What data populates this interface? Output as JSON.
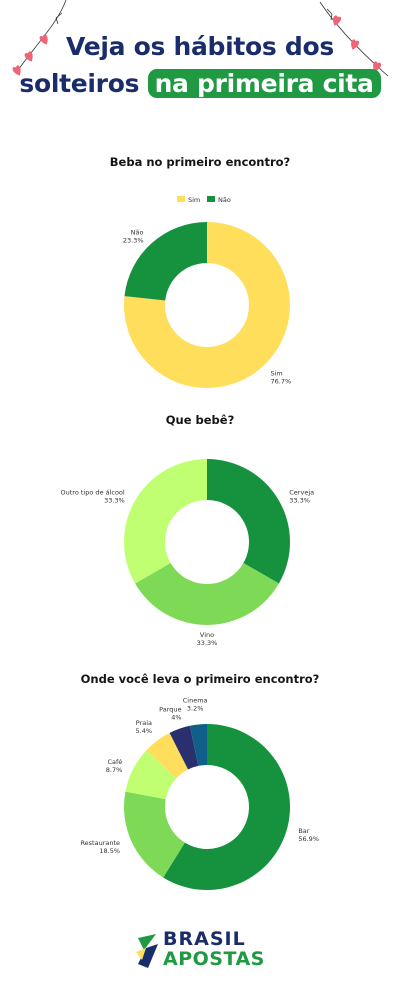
{
  "header": {
    "line1": "Veja os hábitos dos",
    "line2_plain": "solteiros",
    "line2_highlight": "na primeira cita"
  },
  "colors": {
    "title_navy": "#1a2d6b",
    "highlight_green": "#1f9a42",
    "heart_pink": "#f06477"
  },
  "chart_data": [
    {
      "type": "pie",
      "donut": true,
      "title": "Beba no primeiro encontro?",
      "legend_position": "top",
      "labels": [
        "Sim",
        "Não"
      ],
      "values": [
        76.7,
        23.3
      ],
      "value_labels": [
        "76.7%",
        "23.3%"
      ],
      "colors": [
        "#ffde5c",
        "#16923f"
      ]
    },
    {
      "type": "pie",
      "donut": true,
      "title": "Que bebê?",
      "labels": [
        "Cerveja",
        "Vino",
        "Outro tipo de álcool"
      ],
      "values": [
        33.3,
        33.3,
        33.3
      ],
      "value_labels": [
        "33.3%",
        "33.3%",
        "33.3%"
      ],
      "colors": [
        "#16923f",
        "#7ed957",
        "#c1ff72"
      ]
    },
    {
      "type": "pie",
      "donut": true,
      "title": "Onde você leva o primeiro encontro?",
      "labels": [
        "Bar",
        "Restaurante",
        "Café",
        "Praia",
        "Parque",
        "Cinema"
      ],
      "values": [
        56.9,
        18.5,
        8.7,
        5.4,
        4,
        3.2
      ],
      "value_labels": [
        "56.9%",
        "18.5%",
        "8.7%",
        "5.4%",
        "4%",
        "3.2%"
      ],
      "colors": [
        "#16923f",
        "#7ed957",
        "#c1ff72",
        "#ffde5c",
        "#2a2f6e",
        "#0f5f8a"
      ]
    }
  ],
  "logo": {
    "line1": "BRASIL",
    "line2": "APOSTAS"
  }
}
